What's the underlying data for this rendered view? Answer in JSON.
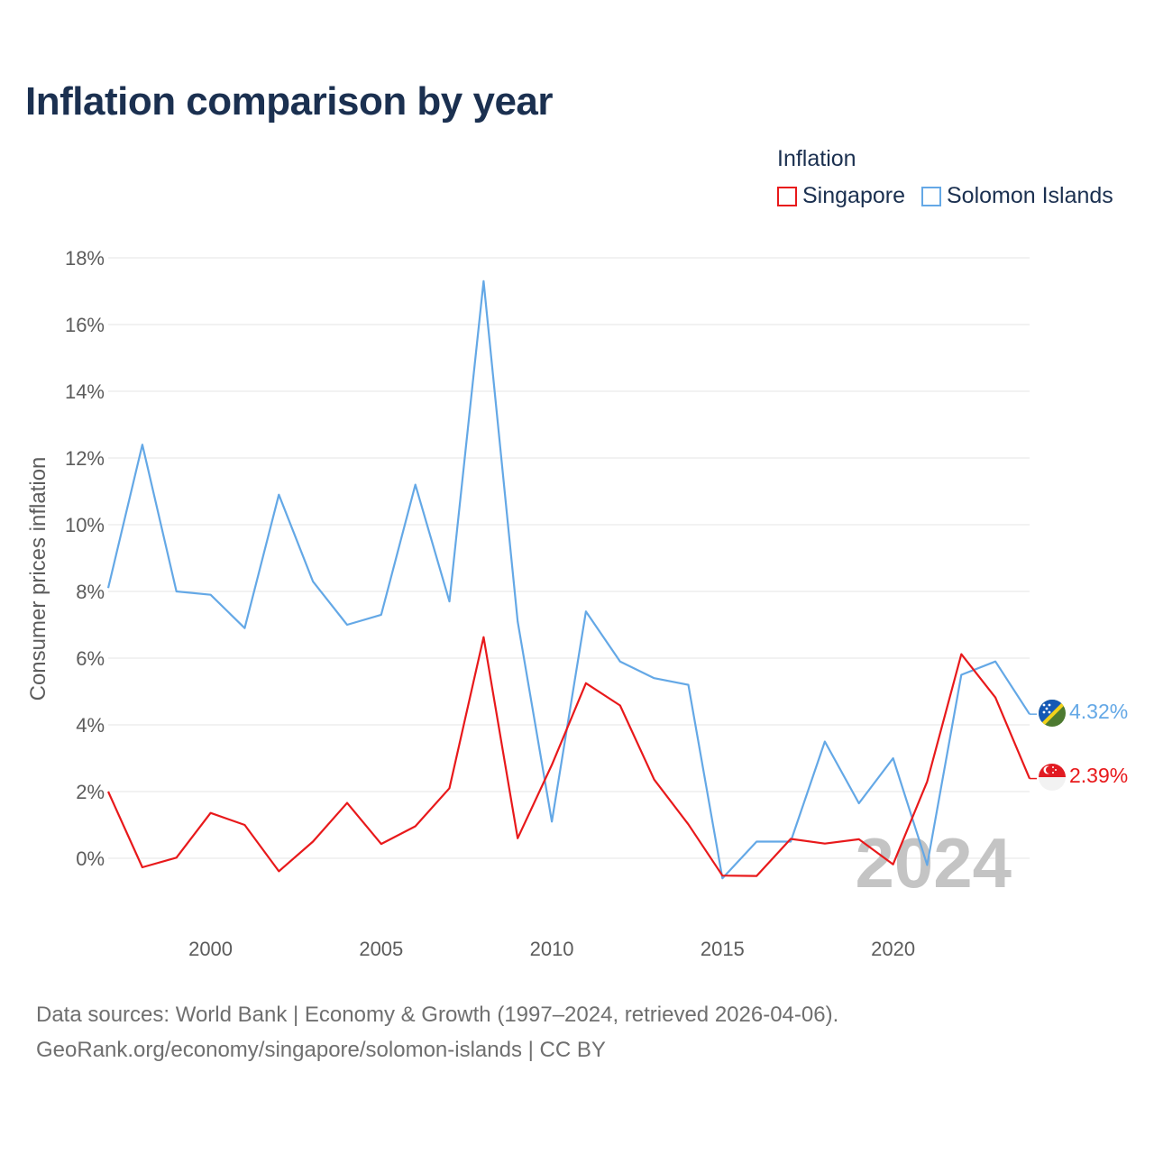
{
  "title": "Inflation comparison by year",
  "legend": {
    "title": "Inflation",
    "items": [
      {
        "label": "Singapore",
        "color": "#e8191b"
      },
      {
        "label": "Solomon Islands",
        "color": "#64a8e6"
      }
    ]
  },
  "source": {
    "line1": "Data sources: World Bank | Economy & Growth (1997–2024, retrieved 2026-04-06).",
    "line2": "GeoRank.org/economy/singapore/solomon-islands | CC BY"
  },
  "chart_data": {
    "type": "line",
    "title": "Inflation comparison by year",
    "xlabel": "",
    "ylabel": "Consumer prices inflation",
    "xlim": [
      1997,
      2024
    ],
    "ylim": [
      -2,
      18
    ],
    "yticks": [
      0,
      2,
      4,
      6,
      8,
      10,
      12,
      14,
      16,
      18
    ],
    "ytick_labels": [
      "0%",
      "2%",
      "4%",
      "6%",
      "8%",
      "10%",
      "12%",
      "14%",
      "16%",
      "18%"
    ],
    "xticks": [
      2000,
      2005,
      2010,
      2015,
      2020
    ],
    "xtick_labels": [
      "2000",
      "2005",
      "2010",
      "2015",
      "2020"
    ],
    "year_watermark": "2024",
    "x": [
      1997,
      1998,
      1999,
      2000,
      2001,
      2002,
      2003,
      2004,
      2005,
      2006,
      2007,
      2008,
      2009,
      2010,
      2011,
      2012,
      2013,
      2014,
      2015,
      2016,
      2017,
      2018,
      2019,
      2020,
      2021,
      2022,
      2023,
      2024
    ],
    "series": [
      {
        "name": "Singapore",
        "color": "#e8191b",
        "end_label": "2.39%",
        "flag_icon": "singapore-flag-icon",
        "values": [
          2.0,
          -0.27,
          0.02,
          1.36,
          1.0,
          -0.39,
          0.5,
          1.66,
          0.43,
          0.96,
          2.1,
          6.63,
          0.6,
          2.8,
          5.25,
          4.58,
          2.36,
          1.02,
          -0.52,
          -0.53,
          0.58,
          0.44,
          0.57,
          -0.18,
          2.3,
          6.12,
          4.82,
          2.39
        ]
      },
      {
        "name": "Solomon Islands",
        "color": "#64a8e6",
        "end_label": "4.32%",
        "flag_icon": "solomon-islands-flag-icon",
        "values": [
          8.1,
          12.4,
          8.0,
          7.9,
          6.9,
          10.9,
          8.3,
          7.0,
          7.3,
          11.2,
          7.7,
          17.3,
          7.1,
          1.1,
          7.4,
          5.9,
          5.4,
          5.2,
          -0.6,
          0.5,
          0.5,
          3.5,
          1.65,
          3.0,
          -0.2,
          5.5,
          5.9,
          4.32
        ]
      }
    ]
  }
}
